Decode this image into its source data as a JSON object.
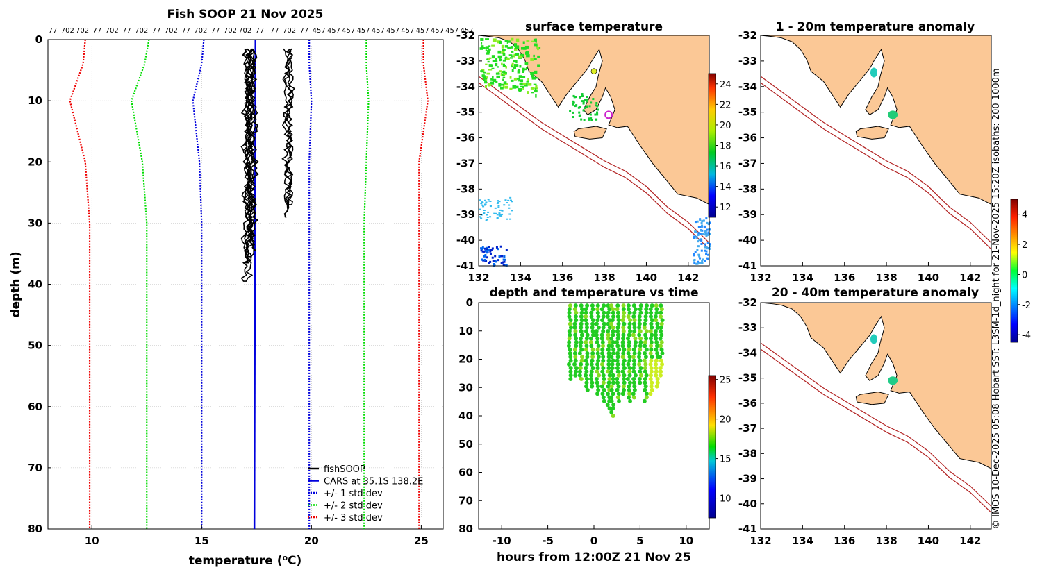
{
  "colors": {
    "land": "#fbc896",
    "coast": "#000000",
    "isobath": "#b22222",
    "cars": "#0000dd",
    "std1": "#0000dd",
    "std2": "#00dd00",
    "std3": "#ee0000",
    "fish": "#000000",
    "grid": "#bbbbbb"
  },
  "chart_data": [
    {
      "id": "profile",
      "type": "line",
      "title": "Fish SOOP 21 Nov 2025",
      "xlabel": "temperature (°C)",
      "xlabel_main": "temperature (",
      "xlabel_sup": "o",
      "xlabel_tail": "C)",
      "ylabel": "depth (m)",
      "xlim": [
        8,
        26
      ],
      "ylim": [
        80,
        0
      ],
      "xticks": [
        10,
        15,
        20,
        25
      ],
      "yticks": [
        0,
        10,
        20,
        30,
        40,
        50,
        60,
        70,
        80
      ],
      "top_labels": [
        "77",
        "702",
        "702",
        "77",
        "702",
        "77",
        "702",
        "77",
        "702",
        "77",
        "702",
        "77",
        "702",
        "702",
        "77",
        "77",
        "702",
        "77",
        "457",
        "457",
        "457",
        "457",
        "457",
        "457",
        "457",
        "457",
        "457",
        "457",
        "457"
      ],
      "cars": {
        "name": "CARS at 35.1S 138.2E",
        "depth": [
          0,
          80
        ],
        "temp": [
          17.45,
          17.4
        ]
      },
      "std_depths": [
        0,
        4,
        10,
        20,
        30,
        80
      ],
      "series": [
        {
          "name": "+/- 1 std dev",
          "style": "std1",
          "left": [
            15.1,
            15.0,
            14.6,
            14.9,
            15.0,
            15.0
          ],
          "right": [
            19.9,
            19.9,
            20.0,
            19.9,
            19.9,
            19.9
          ]
        },
        {
          "name": "+/- 2 std dev",
          "style": "std2",
          "left": [
            12.6,
            12.4,
            11.8,
            12.3,
            12.5,
            12.5
          ],
          "right": [
            22.5,
            22.5,
            22.6,
            22.5,
            22.4,
            22.4
          ]
        },
        {
          "name": "+/- 3 std dev",
          "style": "std3",
          "left": [
            9.7,
            9.6,
            9.0,
            9.7,
            9.9,
            9.9
          ],
          "right": [
            25.1,
            25.1,
            25.3,
            24.9,
            24.9,
            24.9
          ]
        }
      ],
      "legend": [
        {
          "label": "fishSOOP",
          "style": "fish"
        },
        {
          "label": "CARS at 35.1S 138.2E",
          "style": "cars"
        },
        {
          "label": "+/- 1 std dev",
          "style": "std1"
        },
        {
          "label": "+/- 2 std dev",
          "style": "std2"
        },
        {
          "label": "+/- 3 std dev",
          "style": "std3"
        }
      ],
      "fish_casts": [
        {
          "temp_base": 17.1,
          "max_depth": 35.5
        },
        {
          "temp_base": 17.0,
          "max_depth": 39.5
        },
        {
          "temp_base": 17.3,
          "max_depth": 34.5
        },
        {
          "temp_base": 17.2,
          "max_depth": 33.0
        },
        {
          "temp_base": 17.15,
          "max_depth": 36.5
        },
        {
          "temp_base": 18.85,
          "max_depth": 29.0
        },
        {
          "temp_base": 18.95,
          "max_depth": 27.0
        }
      ]
    },
    {
      "id": "surface-map",
      "type": "heatmap",
      "title": "surface temperature",
      "xlim": [
        132,
        143
      ],
      "ylim": [
        -41,
        -32
      ],
      "xticks": [
        132,
        134,
        136,
        138,
        140,
        142
      ],
      "yticks": [
        -32,
        -33,
        -34,
        -35,
        -36,
        -37,
        -38,
        -39,
        -40,
        -41
      ],
      "colorbar_ticks": [
        12,
        14,
        16,
        18,
        20,
        22,
        24
      ],
      "colorbar_range": [
        11,
        25
      ]
    },
    {
      "id": "anom-1-20",
      "type": "heatmap",
      "title": "1 - 20m temperature anomaly",
      "xlim": [
        132,
        143
      ],
      "ylim": [
        -41,
        -32
      ],
      "xticks": [
        132,
        134,
        136,
        138,
        140,
        142
      ],
      "yticks": [
        -32,
        -33,
        -34,
        -35,
        -36,
        -37,
        -38,
        -39,
        -40,
        -41
      ]
    },
    {
      "id": "anom-20-40",
      "type": "heatmap",
      "title": "20 - 40m temperature anomaly",
      "xlim": [
        132,
        143
      ],
      "ylim": [
        -41,
        -32
      ],
      "xticks": [
        132,
        134,
        136,
        138,
        140,
        142
      ],
      "yticks": [
        -32,
        -33,
        -34,
        -35,
        -36,
        -37,
        -38,
        -39,
        -40,
        -41
      ]
    },
    {
      "id": "anom-colorbar",
      "type": "heatmap",
      "ticks": [
        4,
        2,
        0,
        -2,
        -4
      ],
      "range": [
        -4.5,
        5
      ]
    },
    {
      "id": "depth-time",
      "type": "scatter",
      "title": "depth and temperature vs time",
      "xlabel": "hours from 12:00Z 21 Nov 25",
      "xlim": [
        -12.5,
        12.5
      ],
      "ylim": [
        80,
        0
      ],
      "xticks": [
        -10,
        -5,
        0,
        5,
        10
      ],
      "yticks": [
        0,
        10,
        20,
        30,
        40,
        50,
        60,
        70,
        80
      ],
      "colorbar_ticks": [
        10,
        15,
        20,
        25
      ],
      "colorbar_range": [
        7.5,
        25.5
      ],
      "casts": [
        {
          "hour": -2.6,
          "max_depth": 28
        },
        {
          "hour": -2.0,
          "max_depth": 26
        },
        {
          "hour": -1.4,
          "max_depth": 28
        },
        {
          "hour": -0.8,
          "max_depth": 32
        },
        {
          "hour": -0.2,
          "max_depth": 30
        },
        {
          "hour": 0.4,
          "max_depth": 33
        },
        {
          "hour": 1.0,
          "max_depth": 36
        },
        {
          "hour": 1.6,
          "max_depth": 38
        },
        {
          "hour": 2.0,
          "max_depth": 40
        },
        {
          "hour": 2.6,
          "max_depth": 35
        },
        {
          "hour": 3.2,
          "max_depth": 33
        },
        {
          "hour": 3.8,
          "max_depth": 36
        },
        {
          "hour": 4.4,
          "max_depth": 34
        },
        {
          "hour": 5.0,
          "max_depth": 29
        },
        {
          "hour": 5.6,
          "max_depth": 35
        },
        {
          "hour": 6.2,
          "max_depth": 33
        },
        {
          "hour": 6.8,
          "max_depth": 30
        },
        {
          "hour": 7.3,
          "max_depth": 26
        }
      ]
    }
  ],
  "credit": "© IMOS 10-Dec-2025 05:08 Hobart SST: L3SM-1d_night for 21-Nov-2025 15:20Z isobaths: 200  1000m"
}
